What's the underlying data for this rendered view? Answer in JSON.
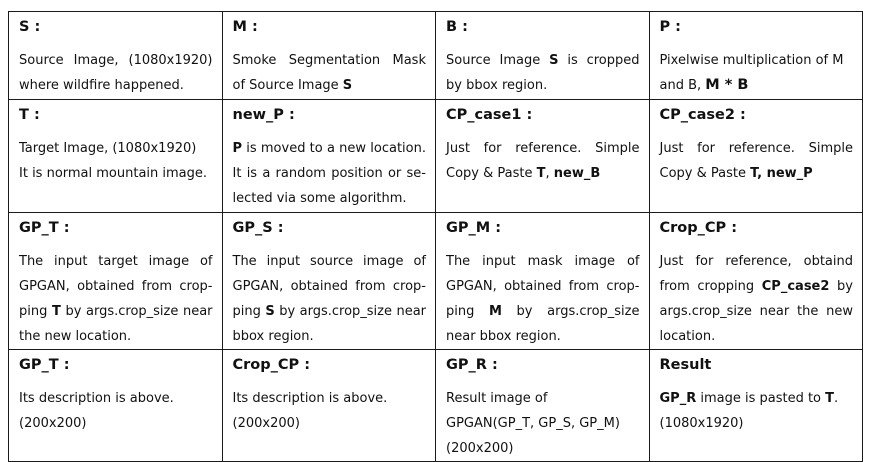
{
  "cells": [
    {
      "title": "S :",
      "parts": [
        {
          "t": "Source Image, (1080x1920) where wildfire happened."
        }
      ]
    },
    {
      "title": "M :",
      "parts": [
        {
          "t": "Smoke Segmentation Mask of Source Image "
        },
        {
          "t": "S",
          "b": true
        }
      ]
    },
    {
      "title": "B :",
      "parts": [
        {
          "t": "Source Image "
        },
        {
          "t": "S",
          "b": true
        },
        {
          "t": " is cropped by bbox region."
        }
      ]
    },
    {
      "title": "P :",
      "parts": [
        {
          "t": "Pixelwise multiplication of M and B, "
        },
        {
          "t": "M * B",
          "b": true,
          "big": true
        }
      ]
    },
    {
      "title": "T :",
      "parts": [
        {
          "t": "Target Image, (1080x1920)"
        },
        {
          "br": true
        },
        {
          "t": "It is normal mountain image."
        }
      ]
    },
    {
      "title": "new_P :",
      "parts": [
        {
          "t": "P",
          "b": true
        },
        {
          "t": " is moved to a new location. It is a random position or se-lected via some algorithm."
        }
      ]
    },
    {
      "title": "CP_case1 :",
      "parts": [
        {
          "t": "Just for reference. Simple Copy & Paste "
        },
        {
          "t": "T",
          "b": true
        },
        {
          "t": ", "
        },
        {
          "t": "new_B",
          "b": true
        }
      ]
    },
    {
      "title": "CP_case2 :",
      "parts": [
        {
          "t": "Just for reference. Simple Copy & Paste "
        },
        {
          "t": "T, new_P",
          "b": true
        }
      ]
    },
    {
      "title": "GP_T :",
      "parts": [
        {
          "t": "The input target image of GPGAN, obtained from crop-ping "
        },
        {
          "t": "T",
          "b": true
        },
        {
          "t": " by args.crop_size near the new location."
        }
      ]
    },
    {
      "title": "GP_S :",
      "parts": [
        {
          "t": "The input source image of GPGAN, obtained from crop-ping "
        },
        {
          "t": "S",
          "b": true
        },
        {
          "t": " by args.crop_size near bbox region."
        }
      ]
    },
    {
      "title": "GP_M :",
      "parts": [
        {
          "t": "The input mask image of GPGAN, obtained from crop-ping "
        },
        {
          "t": "M",
          "b": true
        },
        {
          "t": " by args.crop_size near bbox region."
        }
      ]
    },
    {
      "title": "Crop_CP :",
      "parts": [
        {
          "t": "Just for reference, obtaind from cropping "
        },
        {
          "t": "CP_case2",
          "b": true
        },
        {
          "t": " by args.crop_size near the new location."
        }
      ]
    },
    {
      "title": "GP_T :",
      "parts": [
        {
          "t": "Its description is above. (200x200)"
        }
      ]
    },
    {
      "title": "Crop_CP :",
      "parts": [
        {
          "t": "Its description is above. (200x200)"
        }
      ]
    },
    {
      "title": "GP_R :",
      "parts": [
        {
          "t": "Result image of GPGAN(GP_T, GP_S, GP_M) (200x200)"
        }
      ]
    },
    {
      "title": "Result",
      "parts": [
        {
          "t": "GP_R",
          "b": true
        },
        {
          "t": " image is pasted to "
        },
        {
          "t": "T",
          "b": true
        },
        {
          "t": ". (1080x1920)"
        }
      ]
    }
  ]
}
